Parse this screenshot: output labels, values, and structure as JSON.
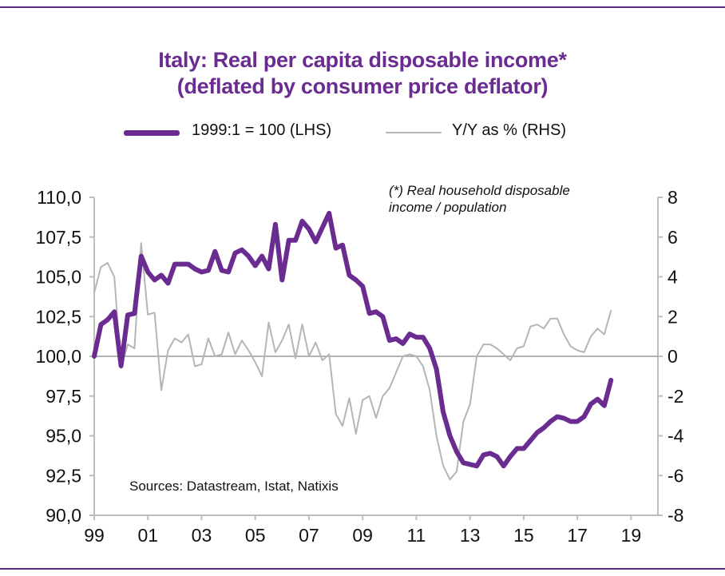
{
  "title_line1": "Italy: Real per capita disposable income*",
  "title_line2": "(deflated by consumer price deflator)",
  "note_line1": "(*) Real household  disposable",
  "note_line2": "income  / population",
  "source": "Sources:  Datastream,  Istat, Natixis",
  "colors": {
    "primary": "#6a2c91",
    "secondary": "#b5b5b5",
    "accent_rule": "#5b2a82"
  },
  "chart_data": {
    "type": "line",
    "x_tick_labels": [
      "99",
      "01",
      "03",
      "05",
      "07",
      "09",
      "11",
      "13",
      "15",
      "17",
      "19"
    ],
    "left_axis": {
      "ylim": [
        90,
        110
      ],
      "tick_labels": [
        "110,0",
        "107,5",
        "105,0",
        "102,5",
        "100,0",
        "97,5",
        "95,0",
        "92,5",
        "90,0"
      ]
    },
    "right_axis": {
      "ylim": [
        -8,
        8
      ],
      "tick_labels": [
        "8",
        "6",
        "4",
        "2",
        "0",
        "-2",
        "-4",
        "-6",
        "-8"
      ]
    },
    "legend_position": "top",
    "series": [
      {
        "name": "1999:1 = 100 (LHS)",
        "axis": "left",
        "color": "#6a2c91",
        "x": [
          1999.0,
          1999.25,
          1999.5,
          1999.75,
          2000.0,
          2000.25,
          2000.5,
          2000.75,
          2001.0,
          2001.25,
          2001.5,
          2001.75,
          2002.0,
          2002.25,
          2002.5,
          2002.75,
          2003.0,
          2003.25,
          2003.5,
          2003.75,
          2004.0,
          2004.25,
          2004.5,
          2004.75,
          2005.0,
          2005.25,
          2005.5,
          2005.75,
          2006.0,
          2006.25,
          2006.5,
          2006.75,
          2007.0,
          2007.25,
          2007.5,
          2007.75,
          2008.0,
          2008.25,
          2008.5,
          2008.75,
          2009.0,
          2009.25,
          2009.5,
          2009.75,
          2010.0,
          2010.25,
          2010.5,
          2010.75,
          2011.0,
          2011.25,
          2011.5,
          2011.75,
          2012.0,
          2012.25,
          2012.5,
          2012.75,
          2013.0,
          2013.25,
          2013.5,
          2013.75,
          2014.0,
          2014.25,
          2014.5,
          2014.75,
          2015.0,
          2015.25,
          2015.5,
          2015.75,
          2016.0,
          2016.25,
          2016.5,
          2016.75,
          2017.0,
          2017.25,
          2017.5,
          2017.75,
          2018.0,
          2018.25
        ],
        "values": [
          100.0,
          102.0,
          102.3,
          102.8,
          99.4,
          102.6,
          102.7,
          106.3,
          105.3,
          104.8,
          105.1,
          104.6,
          105.8,
          105.8,
          105.8,
          105.5,
          105.3,
          105.4,
          106.6,
          105.4,
          105.3,
          106.5,
          106.7,
          106.3,
          105.7,
          106.3,
          105.5,
          108.3,
          104.8,
          107.3,
          107.3,
          108.5,
          108.0,
          107.2,
          108.1,
          109.0,
          106.8,
          107.0,
          105.1,
          104.8,
          104.4,
          102.7,
          102.8,
          102.5,
          101.0,
          101.1,
          100.8,
          101.4,
          101.2,
          101.2,
          100.5,
          99.2,
          96.5,
          95.0,
          94.0,
          93.3,
          93.2,
          93.1,
          93.8,
          93.9,
          93.7,
          93.1,
          93.7,
          94.2,
          94.2,
          94.7,
          95.2,
          95.5,
          95.9,
          96.2,
          96.1,
          95.9,
          95.9,
          96.2,
          97.0,
          97.3,
          96.9,
          98.5
        ]
      },
      {
        "name": "Y/Y as % (RHS)",
        "axis": "right",
        "color": "#b5b5b5",
        "x": [
          1999.0,
          1999.25,
          1999.5,
          1999.75,
          2000.0,
          2000.25,
          2000.5,
          2000.75,
          2001.0,
          2001.25,
          2001.5,
          2001.75,
          2002.0,
          2002.25,
          2002.5,
          2002.75,
          2003.0,
          2003.25,
          2003.5,
          2003.75,
          2004.0,
          2004.25,
          2004.5,
          2004.75,
          2005.0,
          2005.25,
          2005.5,
          2005.75,
          2006.0,
          2006.25,
          2006.5,
          2006.75,
          2007.0,
          2007.25,
          2007.5,
          2007.75,
          2008.0,
          2008.25,
          2008.5,
          2008.75,
          2009.0,
          2009.25,
          2009.5,
          2009.75,
          2010.0,
          2010.25,
          2010.5,
          2010.75,
          2011.0,
          2011.25,
          2011.5,
          2011.75,
          2012.0,
          2012.25,
          2012.5,
          2012.75,
          2013.0,
          2013.25,
          2013.5,
          2013.75,
          2014.0,
          2014.25,
          2014.5,
          2014.75,
          2015.0,
          2015.25,
          2015.5,
          2015.75,
          2016.0,
          2016.25,
          2016.5,
          2016.75,
          2017.0,
          2017.25,
          2017.5,
          2017.75,
          2018.0,
          2018.25
        ],
        "values": [
          3.2,
          4.5,
          4.7,
          4.0,
          -0.6,
          0.6,
          0.4,
          5.7,
          2.1,
          2.2,
          -1.7,
          0.3,
          0.9,
          0.7,
          1.1,
          -0.5,
          -0.4,
          0.9,
          0.0,
          0.1,
          1.2,
          0.1,
          0.8,
          0.3,
          -0.3,
          -1.0,
          1.7,
          0.2,
          0.8,
          1.6,
          -0.1,
          1.6,
          0.0,
          0.7,
          -0.2,
          0.1,
          -2.9,
          -3.5,
          -2.1,
          -3.9,
          -2.2,
          -2.0,
          -3.1,
          -2.0,
          -1.6,
          -0.8,
          0.0,
          0.1,
          0.0,
          -0.5,
          -1.7,
          -4.0,
          -5.5,
          -6.2,
          -5.8,
          -3.3,
          -2.4,
          0.0,
          0.6,
          0.6,
          0.4,
          0.1,
          -0.2,
          0.4,
          0.5,
          1.5,
          1.6,
          1.4,
          1.9,
          1.9,
          1.1,
          0.5,
          0.3,
          0.2,
          1.0,
          1.4,
          1.1,
          2.3
        ]
      }
    ]
  }
}
